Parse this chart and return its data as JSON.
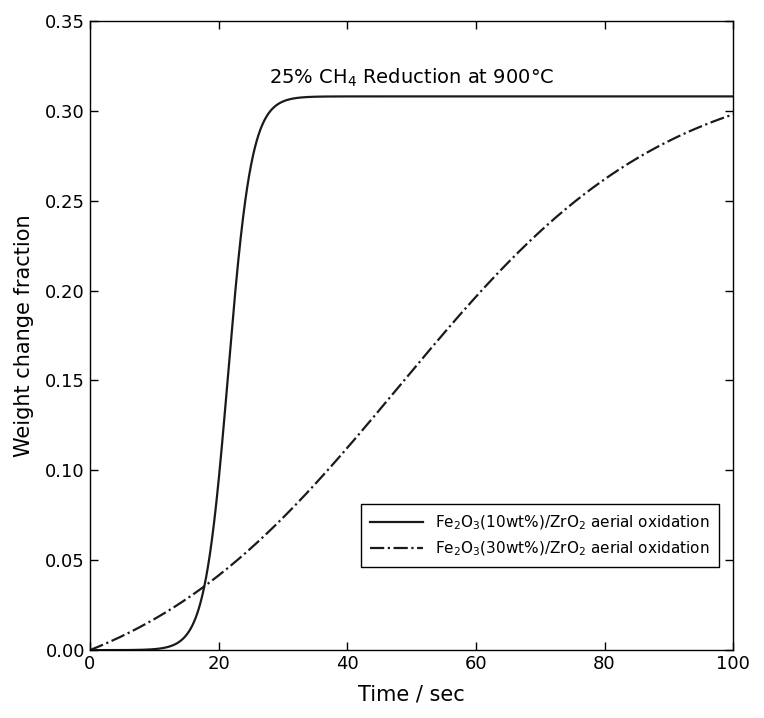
{
  "title": "25% CH$_4$ Reduction at 900°C",
  "xlabel": "Time / sec",
  "ylabel": "Weight change fraction",
  "xlim": [
    0,
    100
  ],
  "ylim": [
    0,
    0.35
  ],
  "xticks": [
    0,
    20,
    40,
    60,
    80,
    100
  ],
  "yticks": [
    0.0,
    0.05,
    0.1,
    0.15,
    0.2,
    0.25,
    0.3,
    0.35
  ],
  "background_color": "#ffffff",
  "curve1_label": "Fe$_2$O$_3$(10wt%)/ZrO$_2$ aerial oxidation",
  "curve2_label": "Fe$_2$O$_3$(30wt%)/ZrO$_2$ aerial oxidation",
  "curve1_color": "#1a1a1a",
  "curve2_color": "#1a1a1a",
  "curve1_style": "-",
  "curve2_style": "-."
}
